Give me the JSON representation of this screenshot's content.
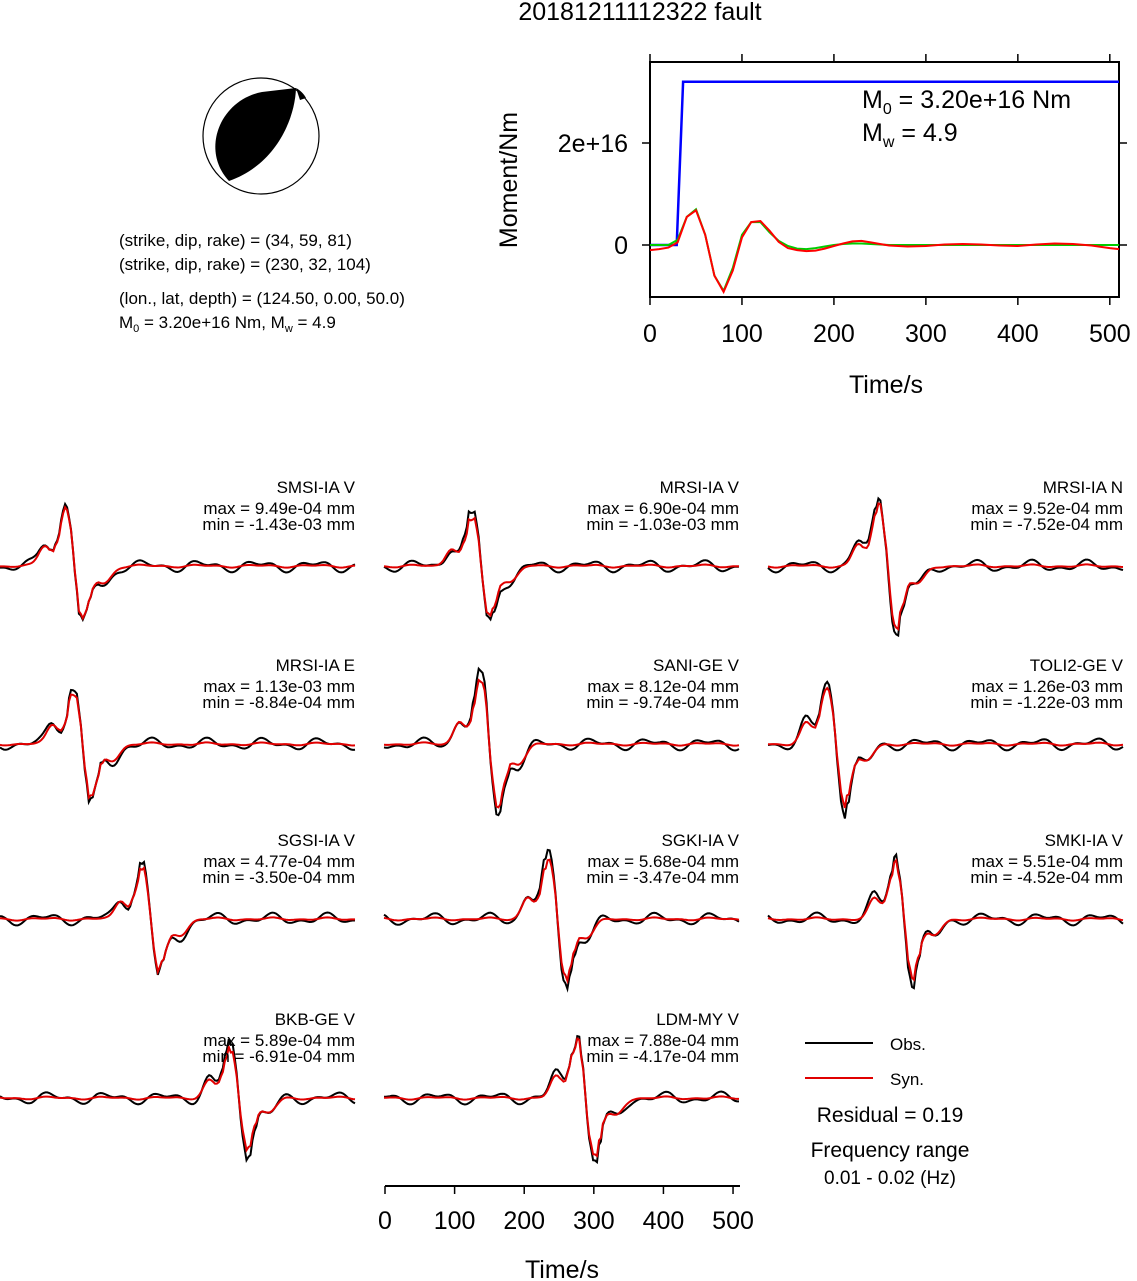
{
  "title": "20181211112322 fault",
  "beachball": {
    "info_lines": [
      "(strike, dip, rake) = (34, 59, 81)",
      "(strike, dip, rake) = (230, 32, 104)",
      "(lon., lat, depth) = (124.50, 0.00, 50.0)"
    ],
    "m0_line_prefix": "M",
    "m0_line_sub": "0",
    "m0_line_rest": " = 3.20e+16 Nm, M",
    "mw_line_sub": "w",
    "mw_line_rest": " = 4.9"
  },
  "moment_panel": {
    "ylabel": "Moment/Nm",
    "xlabel": "Time/s",
    "m0_label_prefix": "M",
    "m0_label_sub": "0",
    "m0_label_rest": " = 3.20e+16 Nm",
    "mw_label_prefix": "M",
    "mw_label_sub": "w",
    "mw_label_rest": " = 4.9",
    "colors": {
      "cumulative": "#0000ff",
      "rate_obs": "#00cc00",
      "rate_syn": "#ff0000"
    }
  },
  "waveforms": {
    "stations": [
      {
        "name": "SMSI-IA V",
        "max": "max = 9.49e-04 mm",
        "min": "min = -1.43e-03 mm"
      },
      {
        "name": "MRSI-IA V",
        "max": "max = 6.90e-04 mm",
        "min": "min = -1.03e-03 mm"
      },
      {
        "name": "MRSI-IA N",
        "max": "max = 9.52e-04 mm",
        "min": "min = -7.52e-04 mm"
      },
      {
        "name": "MRSI-IA E",
        "max": "max = 1.13e-03 mm",
        "min": "min = -8.84e-04 mm"
      },
      {
        "name": "SANI-GE V",
        "max": "max = 8.12e-04 mm",
        "min": "min = -9.74e-04 mm"
      },
      {
        "name": "TOLI2-GE V",
        "max": "max = 1.26e-03 mm",
        "min": "min = -1.22e-03 mm"
      },
      {
        "name": "SGSI-IA V",
        "max": "max = 4.77e-04 mm",
        "min": "min = -3.50e-04 mm"
      },
      {
        "name": "SGKI-IA V",
        "max": "max = 5.68e-04 mm",
        "min": "min = -3.47e-04 mm"
      },
      {
        "name": "SMKI-IA V",
        "max": "max = 5.51e-04 mm",
        "min": "min = -4.52e-04 mm"
      },
      {
        "name": "BKB-GE V",
        "max": "max = 5.89e-04 mm",
        "min": "min = -6.91e-04 mm"
      },
      {
        "name": "LDM-MY V",
        "max": "max = 7.88e-04 mm",
        "min": "min = -4.17e-04 mm"
      }
    ],
    "xlabel": "Time/s",
    "legend": {
      "obs": "Obs.",
      "syn": "Syn."
    },
    "residual": "Residual = 0.19",
    "freq_title": "Frequency range",
    "freq_value": "0.01 - 0.02 (Hz)",
    "colors": {
      "obs": "#000000",
      "syn": "#e00000"
    }
  },
  "chart_data": [
    {
      "type": "line",
      "xlabel": "Time/s",
      "ylabel": "Moment/Nm",
      "xlim": [
        0,
        510
      ],
      "xticks": [
        0,
        100,
        200,
        300,
        400,
        500
      ],
      "ytick_labels": [
        "0",
        "2e+16"
      ],
      "series": [
        {
          "x": [
            0,
            29,
            36,
            510
          ],
          "values": [
            0,
            0,
            3.2e+16,
            3.2e+16
          ]
        },
        {
          "x": [
            0,
            10,
            20,
            30,
            40,
            50,
            60,
            70,
            80,
            90,
            100,
            110,
            120,
            130,
            140,
            150,
            160,
            170,
            180,
            190,
            200,
            210,
            220,
            230,
            240,
            250,
            260,
            280,
            300,
            320,
            340,
            360,
            380,
            400,
            420,
            440,
            460,
            480,
            500,
            510
          ],
          "values": [
            0,
            0,
            0,
            1000000000000000.0,
            5500000000000000.0,
            7000000000000000.0,
            2000000000000000.0,
            -6000000000000000.0,
            -9000000000000000.0,
            -4500000000000000.0,
            2000000000000000.0,
            4500000000000000.0,
            4500000000000000.0,
            2500000000000000.0,
            800000000000000.0,
            -200000000000000.0,
            -700000000000000.0,
            -800000000000000.0,
            -600000000000000.0,
            -300000000000000.0,
            0,
            200000000000000.0,
            300000000000000.0,
            300000000000000.0,
            200000000000000.0,
            100000000000000.0,
            0,
            0,
            0,
            0,
            0,
            0,
            0,
            0,
            0,
            0,
            0,
            0,
            0,
            0
          ]
        },
        {
          "x": [
            0,
            10,
            20,
            30,
            40,
            50,
            60,
            70,
            80,
            90,
            100,
            110,
            120,
            130,
            140,
            150,
            160,
            170,
            180,
            190,
            200,
            210,
            220,
            230,
            240,
            250,
            260,
            280,
            300,
            320,
            340,
            360,
            380,
            400,
            420,
            440,
            460,
            480,
            500,
            510
          ],
          "values": [
            -1000000000000000.0,
            -800000000000000.0,
            -500000000000000.0,
            500000000000000.0,
            5500000000000000.0,
            6800000000000000.0,
            2000000000000000.0,
            -6000000000000000.0,
            -9200000000000000.0,
            -5000000000000000.0,
            1500000000000000.0,
            4500000000000000.0,
            4700000000000000.0,
            2800000000000000.0,
            600000000000000.0,
            -600000000000000.0,
            -1000000000000000.0,
            -1200000000000000.0,
            -1100000000000000.0,
            -700000000000000.0,
            -200000000000000.0,
            300000000000000.0,
            700000000000000.0,
            800000000000000.0,
            500000000000000.0,
            200000000000000.0,
            -100000000000000.0,
            -300000000000000.0,
            -200000000000000.0,
            100000000000000.0,
            200000000000000.0,
            100000000000000.0,
            -100000000000000.0,
            -200000000000000.0,
            100000000000000.0,
            300000000000000.0,
            200000000000000.0,
            -100000000000000.0,
            -600000000000000.0,
            -800000000000000.0
          ]
        }
      ]
    },
    {
      "type": "line",
      "xlabel": "Time/s",
      "xlim": [
        0,
        510
      ],
      "xticks": [
        0,
        100,
        200,
        300,
        400,
        500
      ]
    }
  ]
}
